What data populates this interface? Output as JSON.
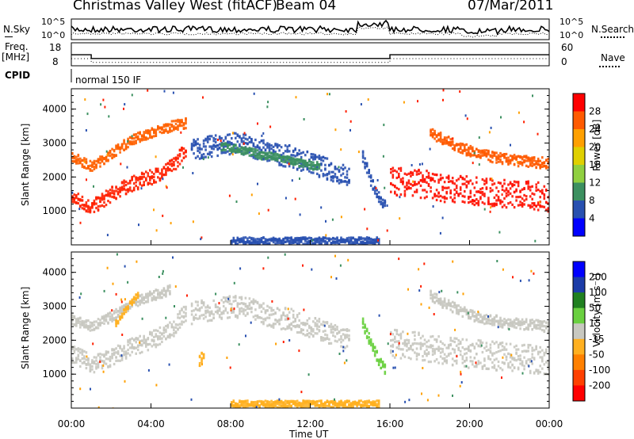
{
  "header": {
    "station": "Christmas Valley West (fitACF)",
    "beam": "Beam 04",
    "date": "07/Mar/2011"
  },
  "panels": {
    "nsky_label": "N.Sky",
    "nsearch_label": "N.Search",
    "noise_ticks": [
      "10^5",
      "10^0"
    ],
    "freq_label": "Freq.",
    "freq_unit": "[MHz]",
    "freq_ticks": [
      "18",
      "8"
    ],
    "nave_label": "Nave",
    "nave_ticks": [
      "60",
      "0"
    ],
    "cpid_label": "CPID",
    "cpid_text": "normal 150 IF"
  },
  "colorbars": {
    "power": {
      "label": "Power [dB]",
      "ticks": [
        "28",
        "24",
        "20",
        "16",
        "12",
        "8",
        "4"
      ],
      "colors": [
        "#ff0000",
        "#ff5a00",
        "#ffa000",
        "#e0d000",
        "#90d040",
        "#3c9060",
        "#2850b0",
        "#0000ff"
      ]
    },
    "velocity": {
      "label": "Velocity [m s⁻¹]",
      "ticks": [
        "200",
        "100",
        "50",
        "15",
        "-15",
        "-50",
        "-100",
        "-200"
      ],
      "colors": [
        "#0000ff",
        "#1c3ca8",
        "#208020",
        "#6ad040",
        "#c8c8c0",
        "#ffb020",
        "#ff8000",
        "#ff4000",
        "#ff0000"
      ]
    }
  },
  "chart_data": {
    "type": "heatmap",
    "title": "Christmas Valley West (fitACF)",
    "xlabel": "Time UT",
    "ylabel": "Slant Range [km]",
    "xticks": [
      "00:00",
      "04:00",
      "08:00",
      "12:00",
      "16:00",
      "20:00",
      "00:00"
    ],
    "yticks": [
      "1000",
      "2000",
      "3000",
      "4000"
    ],
    "xlim": [
      0,
      24
    ],
    "ylim": [
      0,
      4600
    ],
    "freq_mhz": {
      "segments": [
        {
          "start": 0,
          "end": 1.0,
          "value": 13
        },
        {
          "start": 1.0,
          "end": 16.0,
          "value": 10
        },
        {
          "start": 16.0,
          "end": 24,
          "value": 13
        }
      ]
    },
    "power_panel": {
      "colorbar": "power",
      "features": [
        {
          "name": "early-low-band",
          "t": [
            0,
            1,
            2,
            3,
            4,
            5,
            5.8
          ],
          "r": [
            1400,
            1100,
            1500,
            1800,
            2000,
            2300,
            2900
          ],
          "w": 220,
          "color": "#ff2000"
        },
        {
          "name": "early-high-band",
          "t": [
            0,
            1,
            2,
            3,
            4,
            5,
            5.8
          ],
          "r": [
            2600,
            2300,
            2700,
            3100,
            3300,
            3500,
            3600
          ],
          "w": 150,
          "color": "#ff6000"
        },
        {
          "name": "morning-arc",
          "t": [
            6,
            7,
            8,
            9,
            10,
            11,
            12,
            13,
            14
          ],
          "r": [
            2800,
            2900,
            3000,
            2900,
            2700,
            2600,
            2400,
            2200,
            2000
          ],
          "w": 320,
          "color": "#2850b0"
        },
        {
          "name": "morning-core",
          "t": [
            7.5,
            8.5,
            9.5,
            10.5,
            11.5,
            12.5
          ],
          "r": [
            2900,
            2800,
            2650,
            2550,
            2400,
            2300
          ],
          "w": 120,
          "color": "#3c9060"
        },
        {
          "name": "spike-1500",
          "t": [
            14.6,
            15.0,
            15.4,
            15.8
          ],
          "r": [
            2600,
            1900,
            1400,
            1100
          ],
          "w": 160,
          "color": "#2850b0"
        },
        {
          "name": "evening-low-band",
          "t": [
            16,
            17,
            18,
            19,
            20,
            21,
            22,
            23,
            24
          ],
          "r": [
            1900,
            1850,
            1750,
            1650,
            1600,
            1550,
            1500,
            1450,
            1400
          ],
          "w": 420,
          "color": "#ff1000"
        },
        {
          "name": "evening-high-band",
          "t": [
            18,
            19,
            20,
            21,
            22,
            23,
            24
          ],
          "r": [
            3300,
            3000,
            2750,
            2600,
            2500,
            2450,
            2400
          ],
          "w": 160,
          "color": "#ff5a00"
        },
        {
          "name": "ground-scatter-floor",
          "t": [
            8,
            10,
            12,
            14,
            15.5
          ],
          "r": [
            120,
            120,
            120,
            120,
            120
          ],
          "w": 100,
          "color": "#2850b0"
        }
      ]
    },
    "velocity_panel": {
      "colorbar": "velocity",
      "features": [
        {
          "name": "early-low-band",
          "t": [
            0,
            1,
            2,
            3,
            4,
            5,
            5.8
          ],
          "r": [
            1600,
            1300,
            1500,
            1800,
            2000,
            2300,
            2900
          ],
          "w": 260,
          "color": "#c8c8c0"
        },
        {
          "name": "early-high-band",
          "t": [
            0,
            1,
            2,
            3,
            4,
            5
          ],
          "r": [
            2600,
            2400,
            2700,
            3100,
            3300,
            3500
          ],
          "w": 150,
          "color": "#c8c8c0"
        },
        {
          "name": "morning-arc",
          "t": [
            6,
            7,
            8,
            9,
            10,
            11,
            12,
            13,
            14
          ],
          "r": [
            2800,
            2900,
            3000,
            2900,
            2700,
            2600,
            2400,
            2200,
            2000
          ],
          "w": 320,
          "color": "#c8c8c0"
        },
        {
          "name": "afternoon-green",
          "t": [
            14.6,
            15.0,
            15.4,
            15.8
          ],
          "r": [
            2500,
            1900,
            1400,
            1100
          ],
          "w": 160,
          "color": "#6ad040"
        },
        {
          "name": "evening-low-band",
          "t": [
            16,
            17,
            18,
            19,
            20,
            21,
            22,
            23,
            24
          ],
          "r": [
            1900,
            1850,
            1750,
            1650,
            1600,
            1550,
            1500,
            1450,
            1400
          ],
          "w": 420,
          "color": "#c8c8c0"
        },
        {
          "name": "evening-high-band",
          "t": [
            18,
            19,
            20,
            21,
            22,
            23,
            24
          ],
          "r": [
            3300,
            3000,
            2750,
            2600,
            2500,
            2450,
            2400
          ],
          "w": 160,
          "color": "#c8c8c0"
        },
        {
          "name": "early-orange-arc",
          "t": [
            2.2,
            2.8,
            3.4
          ],
          "r": [
            2500,
            3000,
            3400
          ],
          "w": 90,
          "color": "#ffb020"
        },
        {
          "name": "orange-blob",
          "t": [
            6.4,
            6.7
          ],
          "r": [
            1400,
            1500
          ],
          "w": 200,
          "color": "#ffb020"
        },
        {
          "name": "floor-band",
          "t": [
            8,
            10,
            12,
            14,
            15.5
          ],
          "r": [
            120,
            120,
            120,
            120,
            120
          ],
          "w": 100,
          "color": "#ffb020"
        }
      ]
    }
  }
}
